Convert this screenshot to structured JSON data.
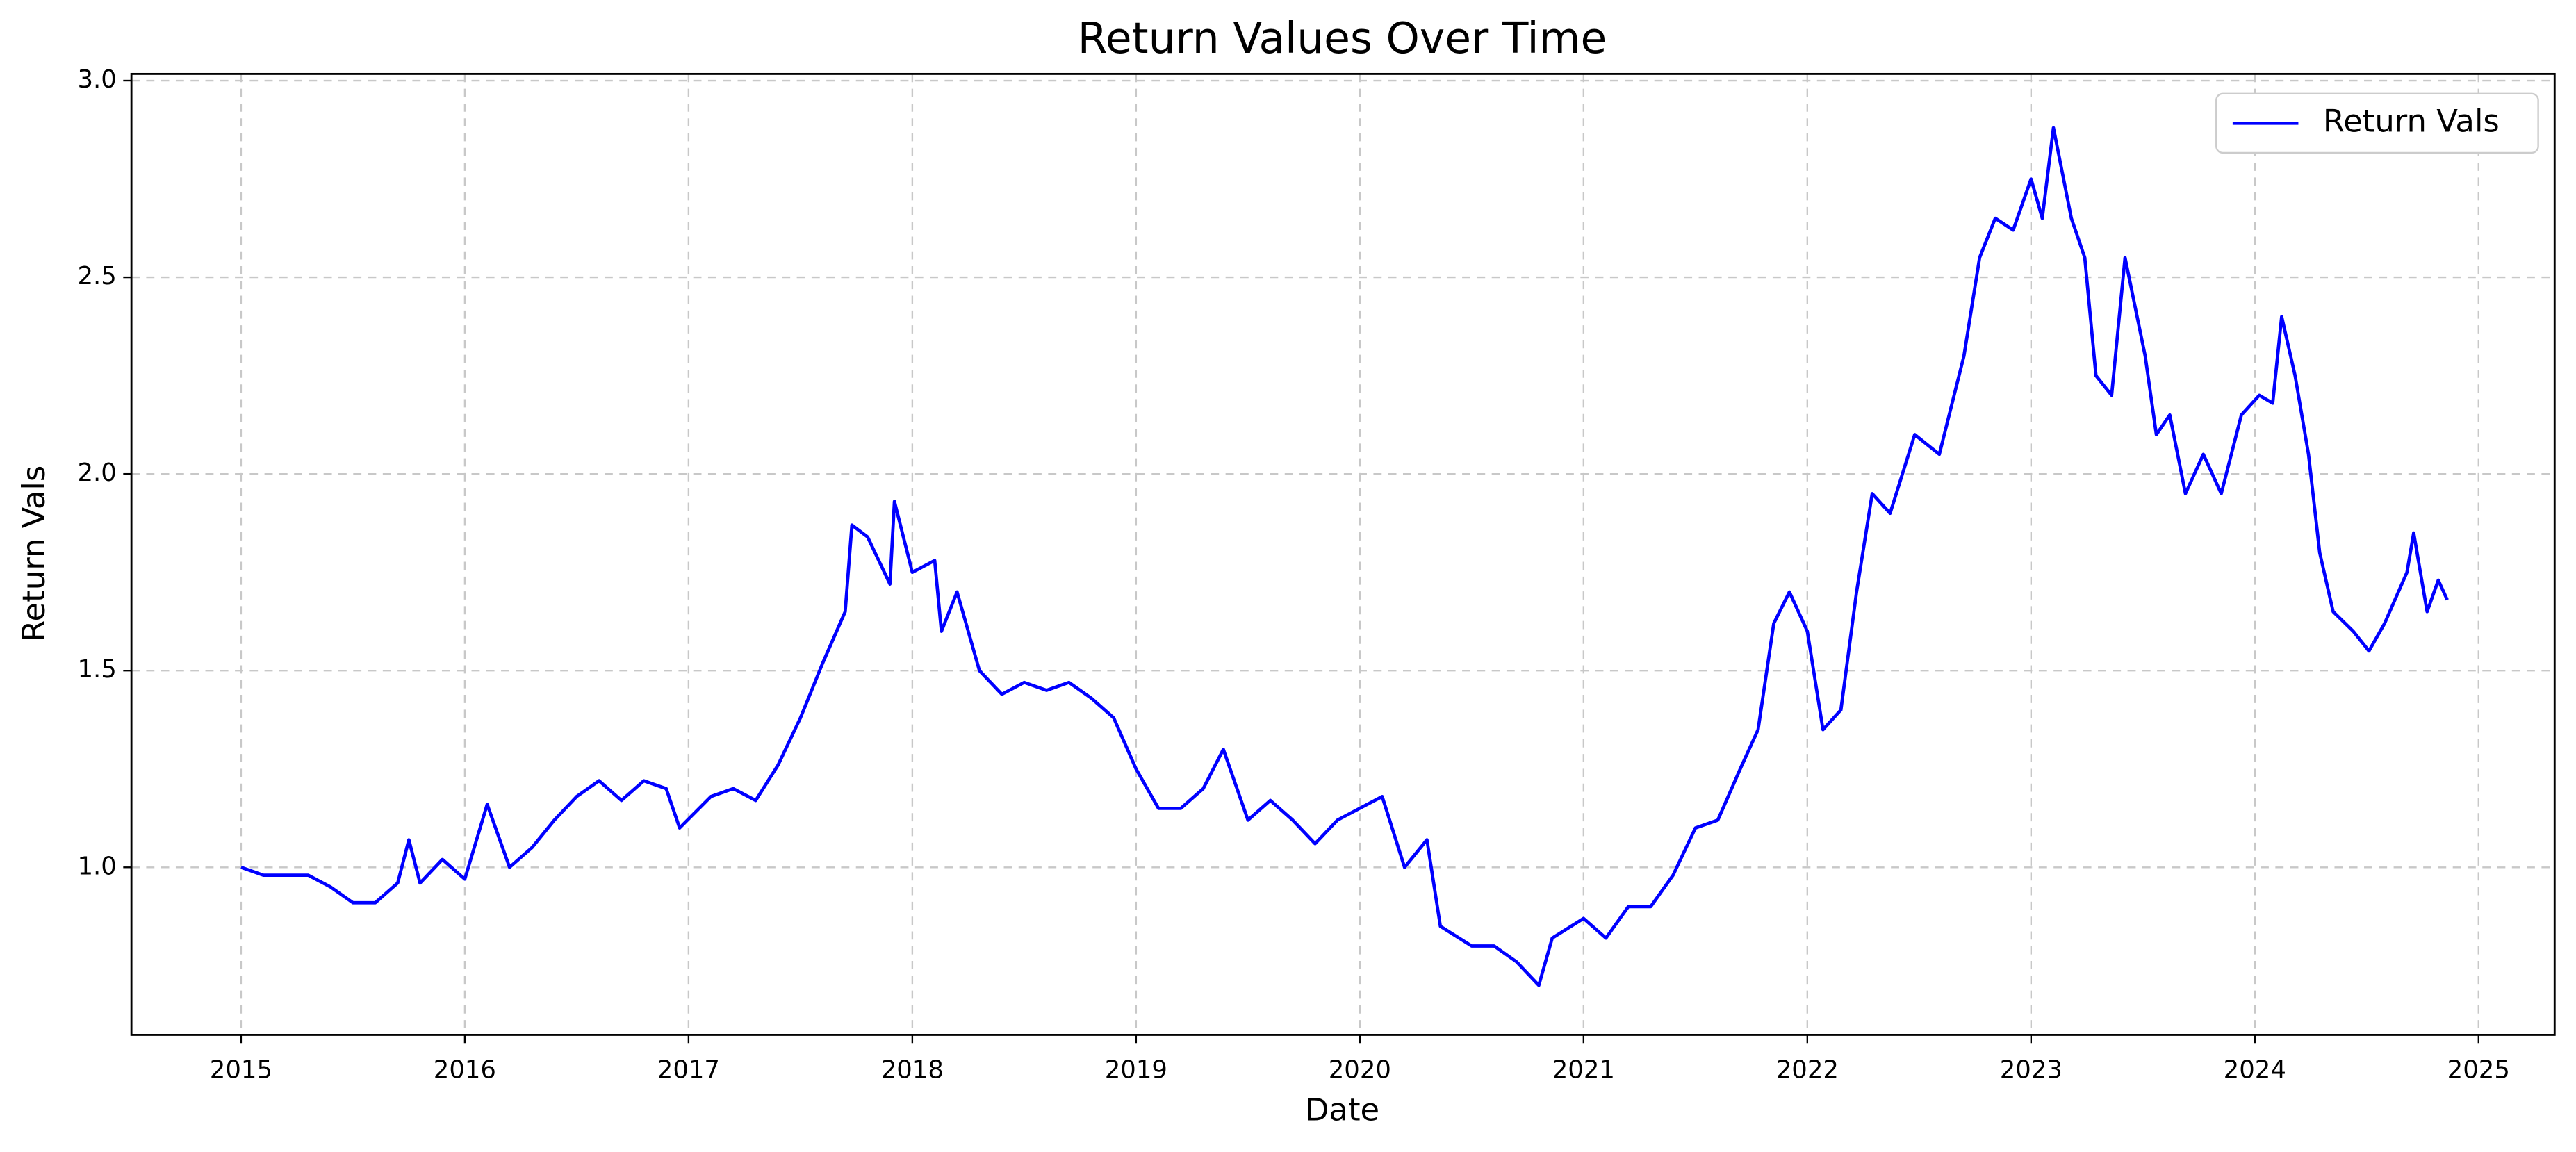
{
  "chart_data": {
    "type": "line",
    "title": "Return Values Over Time",
    "x_label": "Date",
    "y_label": "Return Vals",
    "x": [
      2015.0,
      2015.1,
      2015.2,
      2015.3,
      2015.4,
      2015.5,
      2015.6,
      2015.7,
      2015.75,
      2015.8,
      2015.9,
      2016.0,
      2016.1,
      2016.2,
      2016.3,
      2016.4,
      2016.5,
      2016.6,
      2016.7,
      2016.8,
      2016.9,
      2016.96,
      2017.1,
      2017.2,
      2017.3,
      2017.4,
      2017.5,
      2017.6,
      2017.7,
      2017.73,
      2017.8,
      2017.9,
      2017.92,
      2018.0,
      2018.1,
      2018.13,
      2018.2,
      2018.3,
      2018.4,
      2018.5,
      2018.6,
      2018.7,
      2018.8,
      2018.9,
      2019.0,
      2019.1,
      2019.2,
      2019.3,
      2019.39,
      2019.5,
      2019.6,
      2019.7,
      2019.8,
      2019.9,
      2020.0,
      2020.1,
      2020.2,
      2020.3,
      2020.36,
      2020.5,
      2020.6,
      2020.7,
      2020.8,
      2020.86,
      2021.0,
      2021.1,
      2021.2,
      2021.3,
      2021.4,
      2021.5,
      2021.6,
      2021.7,
      2021.78,
      2021.85,
      2021.92,
      2022.0,
      2022.07,
      2022.15,
      2022.22,
      2022.29,
      2022.37,
      2022.48,
      2022.59,
      2022.7,
      2022.77,
      2022.84,
      2022.92,
      2023.0,
      2023.05,
      2023.1,
      2023.18,
      2023.24,
      2023.29,
      2023.36,
      2023.42,
      2023.51,
      2023.56,
      2023.62,
      2023.69,
      2023.77,
      2023.85,
      2023.94,
      2024.02,
      2024.08,
      2024.12,
      2024.18,
      2024.24,
      2024.29,
      2024.35,
      2024.44,
      2024.51,
      2024.58,
      2024.68,
      2024.71,
      2024.77,
      2024.82,
      2024.86
    ],
    "series": [
      {
        "name": "Return Vals",
        "color": "#0000ff",
        "values": [
          1.0,
          0.98,
          0.98,
          0.98,
          0.95,
          0.91,
          0.91,
          0.96,
          1.07,
          0.96,
          1.02,
          0.97,
          1.16,
          1.0,
          1.05,
          1.12,
          1.18,
          1.22,
          1.17,
          1.22,
          1.2,
          1.1,
          1.18,
          1.2,
          1.17,
          1.26,
          1.38,
          1.52,
          1.65,
          1.87,
          1.84,
          1.72,
          1.93,
          1.75,
          1.78,
          1.6,
          1.7,
          1.5,
          1.44,
          1.47,
          1.45,
          1.47,
          1.43,
          1.38,
          1.25,
          1.15,
          1.15,
          1.2,
          1.3,
          1.12,
          1.17,
          1.12,
          1.06,
          1.12,
          1.15,
          1.18,
          1.0,
          1.07,
          0.85,
          0.8,
          0.8,
          0.76,
          0.7,
          0.82,
          0.87,
          0.82,
          0.9,
          0.9,
          0.98,
          1.1,
          1.12,
          1.25,
          1.35,
          1.62,
          1.7,
          1.6,
          1.35,
          1.4,
          1.7,
          1.95,
          1.9,
          2.1,
          2.05,
          2.3,
          2.55,
          2.65,
          2.62,
          2.75,
          2.65,
          2.88,
          2.65,
          2.55,
          2.25,
          2.2,
          2.55,
          2.3,
          2.1,
          2.15,
          1.95,
          2.05,
          1.95,
          2.15,
          2.2,
          2.18,
          2.4,
          2.25,
          2.05,
          1.8,
          1.65,
          1.6,
          1.55,
          1.62,
          1.75,
          1.85,
          1.65,
          1.73,
          1.68
        ]
      }
    ],
    "xlim": [
      2014.51,
      2025.34
    ],
    "xticks": [
      2015,
      2016,
      2017,
      2018,
      2019,
      2020,
      2021,
      2022,
      2023,
      2024,
      2025
    ],
    "ylim": [
      0.574,
      3.017
    ],
    "yticks": [
      {
        "value": 1.0,
        "label": "1.0"
      },
      1.5,
      {
        "value": 2.0,
        "label": "2.0"
      },
      2.5,
      {
        "value": 3.0,
        "label": "3.0"
      }
    ],
    "grid": true,
    "legend": "upper-right"
  }
}
